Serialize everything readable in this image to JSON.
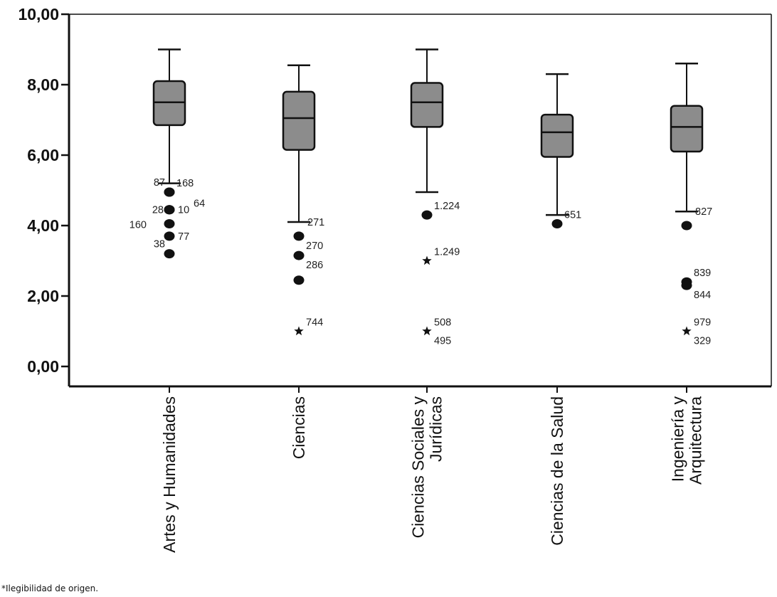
{
  "chart_data": {
    "type": "boxplot",
    "title": "",
    "xlabel": "",
    "ylabel": "",
    "ylim": [
      0,
      10
    ],
    "y_ticks": [
      {
        "value": 0,
        "label": "0,00"
      },
      {
        "value": 2,
        "label": "2,00"
      },
      {
        "value": 4,
        "label": "4,00"
      },
      {
        "value": 6,
        "label": "6,00"
      },
      {
        "value": 8,
        "label": "8,00"
      },
      {
        "value": 10,
        "label": "10,00"
      }
    ],
    "box_color": "#8c8c8c",
    "categories": [
      {
        "name": "Artes y Humanidades",
        "label_lines": [
          "Artes y Humanidades"
        ],
        "whisker_low": 5.2,
        "q1": 6.85,
        "median": 7.5,
        "q3": 8.1,
        "whisker_high": 9.0,
        "outliers": [
          {
            "value": 4.95,
            "marker": "circle",
            "label": "87",
            "anchor": "upper-left"
          },
          {
            "value": 4.95,
            "marker": "circle",
            "label": "168",
            "anchor": "upper-right"
          },
          {
            "value": 4.45,
            "marker": "circle",
            "label": "28",
            "anchor": "left"
          },
          {
            "value": 4.45,
            "marker": "circle",
            "label": "10",
            "anchor": "right"
          },
          {
            "value": 4.45,
            "marker": "circle",
            "label": "64",
            "anchor": "upper-right-far"
          },
          {
            "value": 4.05,
            "marker": "circle",
            "label": "160",
            "anchor": "left-far"
          },
          {
            "value": 3.7,
            "marker": "circle",
            "label": "77",
            "anchor": "right"
          },
          {
            "value": 3.2,
            "marker": "circle",
            "label": "38",
            "anchor": "upper-left"
          }
        ]
      },
      {
        "name": "Ciencias",
        "label_lines": [
          "Ciencias"
        ],
        "whisker_low": 4.1,
        "q1": 6.15,
        "median": 7.05,
        "q3": 7.8,
        "whisker_high": 8.55,
        "outliers": [
          {
            "value": 4.1,
            "marker": "none",
            "label": "271",
            "anchor": "right"
          },
          {
            "value": 3.7,
            "marker": "circle",
            "label": "270",
            "anchor": "lower-right"
          },
          {
            "value": 3.15,
            "marker": "circle",
            "label": "286",
            "anchor": "lower-right"
          },
          {
            "value": 2.45,
            "marker": "circle",
            "label": "",
            "anchor": "right"
          },
          {
            "value": 1.0,
            "marker": "star",
            "label": "744",
            "anchor": "upper-right"
          }
        ]
      },
      {
        "name": "Ciencias Sociales y Jurídicas",
        "label_lines": [
          "Ciencias Sociales y",
          "Jurídicas"
        ],
        "whisker_low": 4.95,
        "q1": 6.8,
        "median": 7.5,
        "q3": 8.05,
        "whisker_high": 9.0,
        "outliers": [
          {
            "value": 4.3,
            "marker": "circle",
            "label": "1.224",
            "anchor": "upper-right"
          },
          {
            "value": 3.0,
            "marker": "star",
            "label": "1.249",
            "anchor": "upper-right"
          },
          {
            "value": 1.0,
            "marker": "star",
            "label": "508",
            "anchor": "upper-right"
          },
          {
            "value": 1.0,
            "marker": "none",
            "label": "495",
            "anchor": "lower-right"
          }
        ]
      },
      {
        "name": "Ciencias de la Salud",
        "label_lines": [
          "Ciencias de la Salud"
        ],
        "whisker_low": 4.3,
        "q1": 5.95,
        "median": 6.65,
        "q3": 7.15,
        "whisker_high": 8.3,
        "outliers": [
          {
            "value": 4.05,
            "marker": "circle",
            "label": "651",
            "anchor": "upper-right"
          }
        ]
      },
      {
        "name": "Ingeniería y Arquitectura",
        "label_lines": [
          "Ingeniería y",
          "Arquitectura"
        ],
        "whisker_low": 4.4,
        "q1": 6.1,
        "median": 6.8,
        "q3": 7.4,
        "whisker_high": 8.6,
        "outliers": [
          {
            "value": 4.4,
            "marker": "none",
            "label": "827",
            "anchor": "right"
          },
          {
            "value": 4.0,
            "marker": "circle",
            "label": "",
            "anchor": "right"
          },
          {
            "value": 2.4,
            "marker": "circle",
            "label": "839",
            "anchor": "upper-right"
          },
          {
            "value": 2.3,
            "marker": "circle",
            "label": "844",
            "anchor": "lower-right"
          },
          {
            "value": 1.0,
            "marker": "star",
            "label": "979",
            "anchor": "upper-right"
          },
          {
            "value": 1.0,
            "marker": "none",
            "label": "329",
            "anchor": "lower-right"
          }
        ]
      }
    ]
  },
  "footnote": "*Ilegibilidad de origen."
}
